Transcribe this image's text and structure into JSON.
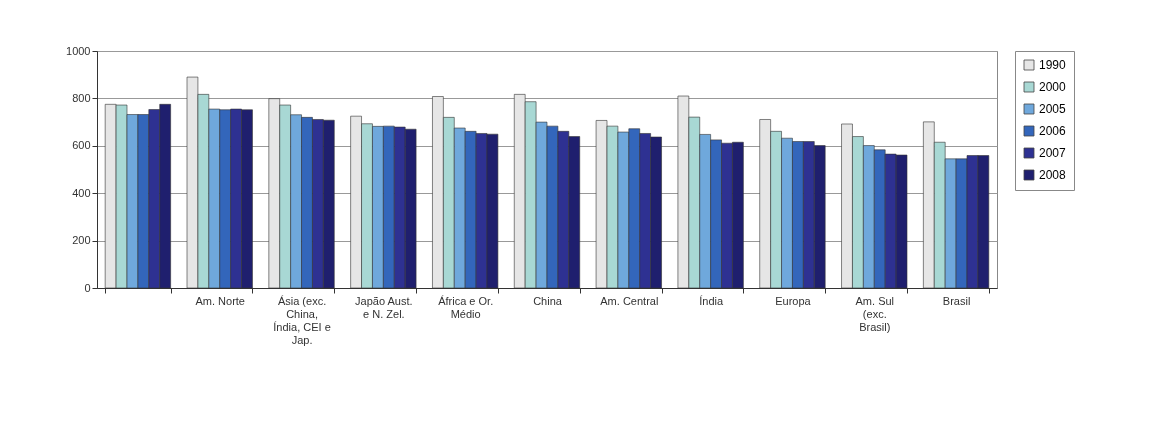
{
  "chart_data": {
    "type": "bar",
    "categories": [
      null,
      "Am. Norte",
      "Ásia (exc. China, Índia, CEI e Jap.",
      "Japão Aust. e N. Zel.",
      "África e Or. Médio",
      "China",
      "Am. Central",
      "Índia",
      "Europa",
      "Am. Sul (exc. Brasil)",
      "Brasil"
    ],
    "series": [
      {
        "name": "1990",
        "color": "#e6e6e6",
        "values": [
          775,
          890,
          799,
          725,
          808,
          817,
          707,
          810,
          711,
          692,
          701
        ]
      },
      {
        "name": "2000",
        "color": "#a8d8d4",
        "values": [
          772,
          817,
          772,
          693,
          720,
          786,
          683,
          721,
          661,
          639,
          615
        ]
      },
      {
        "name": "2005",
        "color": "#6fa8dc",
        "values": [
          732,
          755,
          731,
          682,
          675,
          700,
          658,
          648,
          632,
          601,
          545
        ]
      },
      {
        "name": "2006",
        "color": "#3366bb",
        "values": [
          732,
          752,
          720,
          683,
          661,
          683,
          672,
          625,
          618,
          583,
          545
        ]
      },
      {
        "name": "2007",
        "color": "#2e3192",
        "values": [
          753,
          755,
          711,
          679,
          652,
          661,
          652,
          611,
          618,
          565,
          559
        ]
      },
      {
        "name": "2008",
        "color": "#1f1f6e",
        "values": [
          775,
          752,
          708,
          670,
          649,
          639,
          637,
          615,
          601,
          561,
          559
        ]
      }
    ],
    "ylim": [
      0,
      1000
    ],
    "yticks": [
      0,
      200,
      400,
      600,
      800,
      1000
    ],
    "grid": "y",
    "legend": "right"
  }
}
